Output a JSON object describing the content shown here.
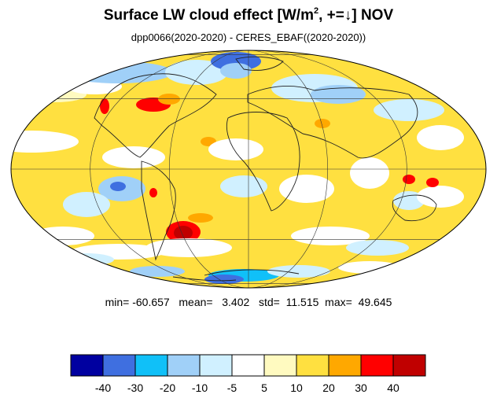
{
  "figure": {
    "title_main": "Surface LW cloud effect [W/m",
    "title_sup": "2",
    "title_rest": ", +=↓]  NOV",
    "subtitle": "dpp0066(2020-2020) - CERES_EBAF((2020-2020))"
  },
  "stats": {
    "min_label": "min=",
    "min": "-60.657",
    "mean_label": "mean=",
    "mean": "3.402",
    "std_label": "std=",
    "std": "11.515",
    "max_label": "max=",
    "max": "49.645"
  },
  "chart_data": {
    "type": "heatmap",
    "projection": "Mollweide",
    "colorbar": {
      "ticks": [
        "-40",
        "-30",
        "-20",
        "-10",
        "-5",
        "5",
        "10",
        "20",
        "30",
        "40"
      ],
      "colors": [
        "#0000a0",
        "#3f6fe0",
        "#10c0f8",
        "#a0d0f8",
        "#d0f0ff",
        "#ffffff",
        "#fffac0",
        "#ffe040",
        "#ffa800",
        "#ff0000",
        "#c00000"
      ]
    }
  }
}
